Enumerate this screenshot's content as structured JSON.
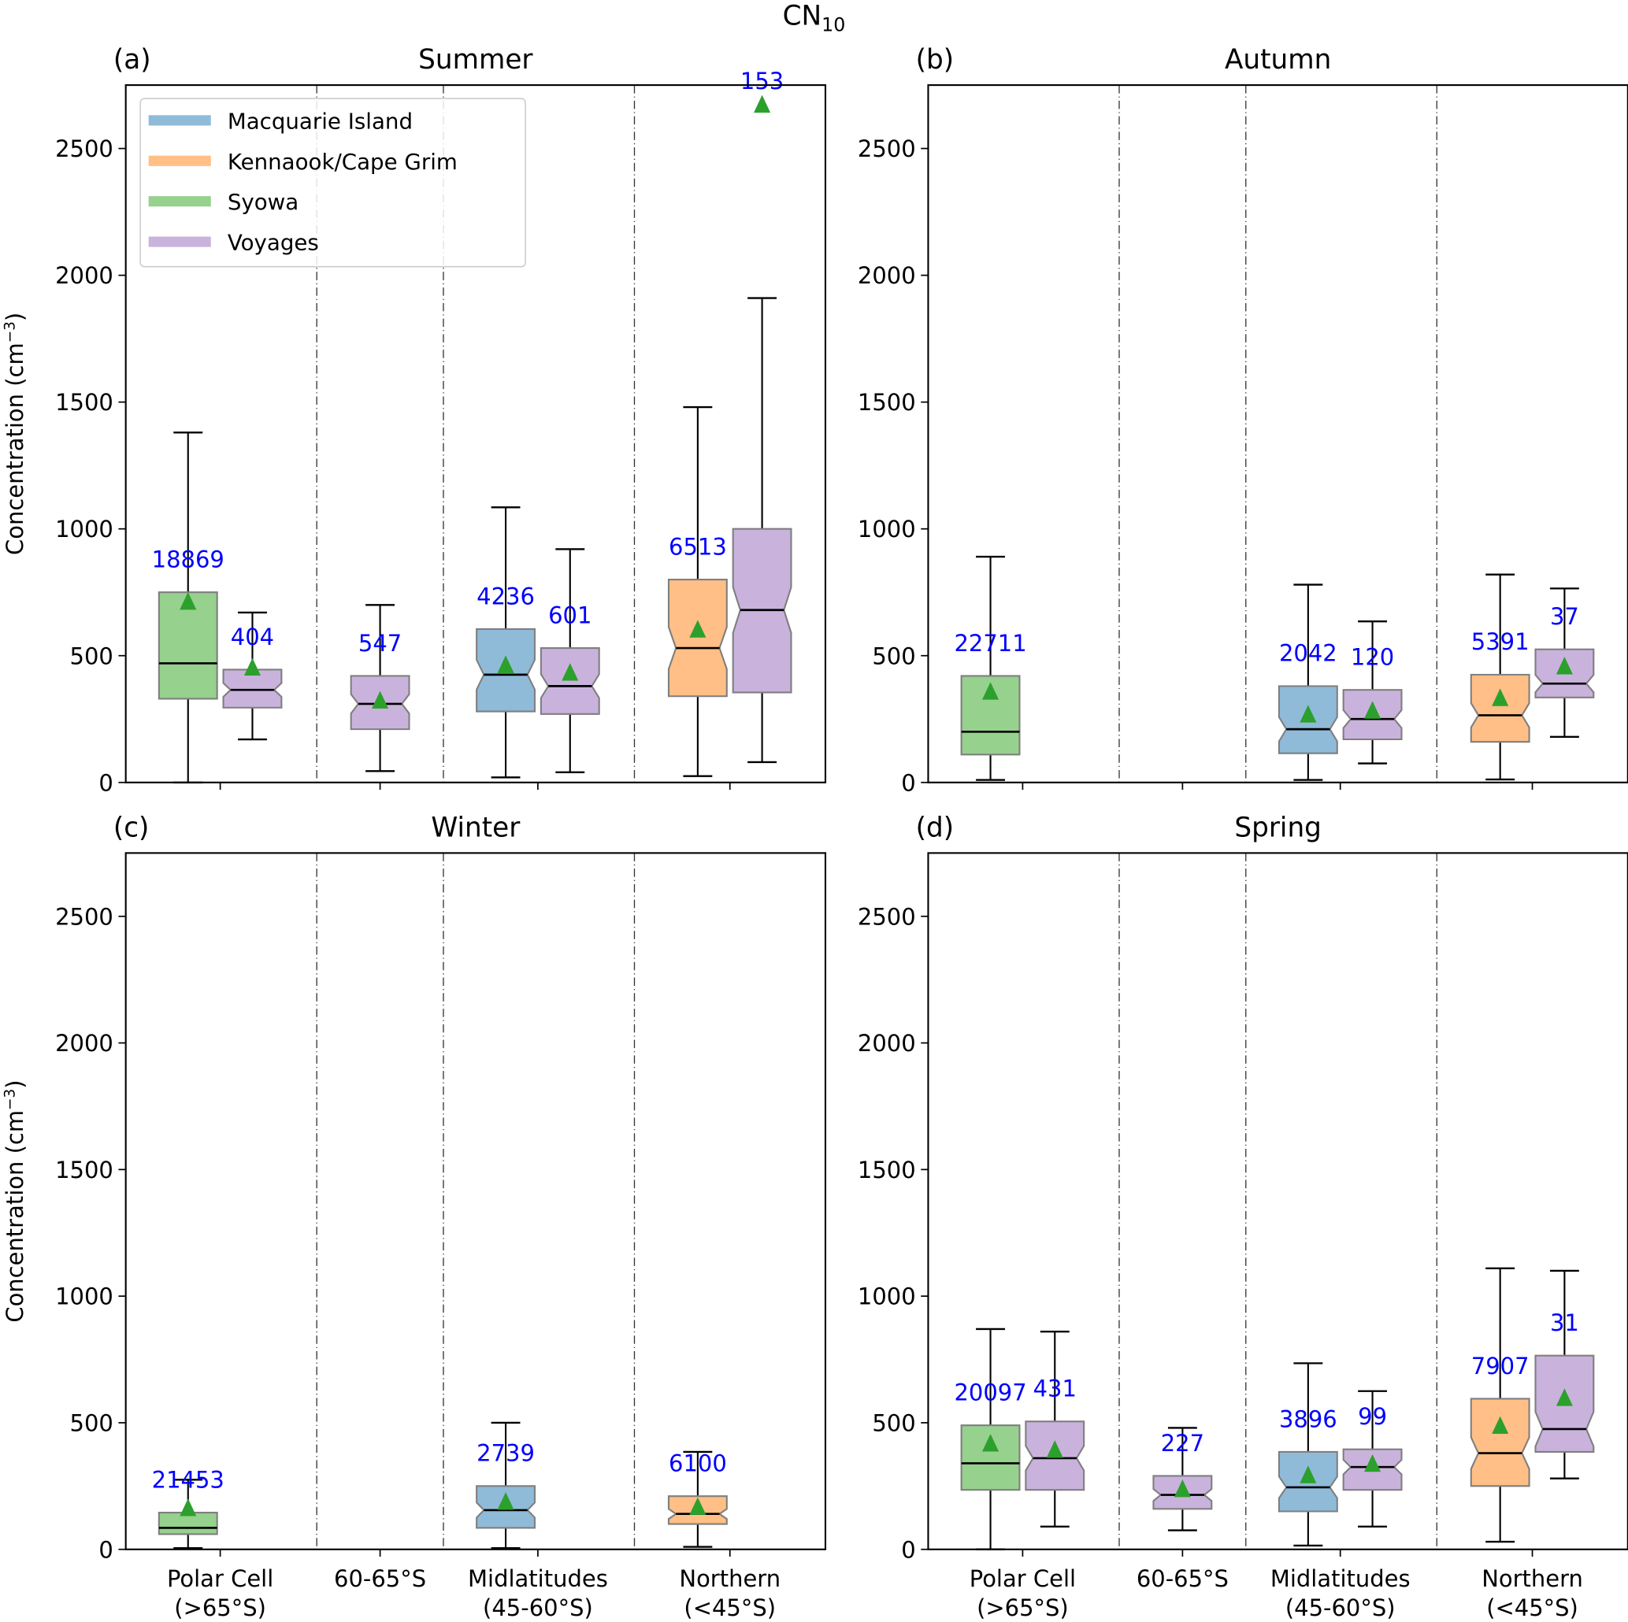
{
  "chart_data": {
    "type": "boxplot",
    "title": "CN10",
    "title_main": "CN",
    "title_sub": "10",
    "ylabel": "Concentration (cm",
    "ylabel_sup": "−3",
    "ylabel_close": ")",
    "ylim": [
      0,
      2750
    ],
    "yticks": [
      0,
      500,
      1000,
      1500,
      2000,
      2500
    ],
    "categories": [
      {
        "line1": "Polar Cell",
        "line2": "(>65°S)"
      },
      {
        "line1": "60-65°S",
        "line2": ""
      },
      {
        "line1": "Midlatitudes",
        "line2": "(45-60°S)"
      },
      {
        "line1": "Northern",
        "line2": "(<45°S)"
      }
    ],
    "legend": {
      "placement": "upper-left of panel (a)",
      "entries": [
        {
          "label": "Macquarie Island",
          "color": "#8fbbd9"
        },
        {
          "label": "Kennaook/Cape Grim",
          "color": "#ffbf86"
        },
        {
          "label": "Syowa",
          "color": "#96d18d"
        },
        {
          "label": "Voyages",
          "color": "#c9b3dd"
        }
      ]
    },
    "colors": {
      "Macquarie Island": "#8fbbd9",
      "Kennaook/Cape Grim": "#ffbf86",
      "Syowa": "#96d18d",
      "Voyages": "#c9b3dd",
      "mean_marker": "#2ca02c",
      "count_text": "#0000ff"
    },
    "panels": [
      {
        "label": "(a)",
        "season": "Summer",
        "boxes": [
          {
            "category": 0,
            "slot": "left",
            "station": "Syowa",
            "whislo": 0,
            "q1": 330,
            "median": 470,
            "q3": 750,
            "whishi": 1380,
            "mean": 710,
            "n": "18869",
            "notch": false
          },
          {
            "category": 0,
            "slot": "right",
            "station": "Voyages",
            "whislo": 170,
            "q1": 295,
            "median": 365,
            "q3": 445,
            "whishi": 670,
            "mean": 450,
            "n": "404",
            "notch": true
          },
          {
            "category": 1,
            "slot": "center",
            "station": "Voyages",
            "whislo": 45,
            "q1": 210,
            "median": 310,
            "q3": 420,
            "whishi": 700,
            "mean": 320,
            "n": "547",
            "notch": true
          },
          {
            "category": 2,
            "slot": "left",
            "station": "Macquarie Island",
            "whislo": 20,
            "q1": 280,
            "median": 425,
            "q3": 605,
            "whishi": 1085,
            "mean": 460,
            "n": "4236",
            "notch": true
          },
          {
            "category": 2,
            "slot": "right",
            "station": "Voyages",
            "whislo": 40,
            "q1": 270,
            "median": 380,
            "q3": 530,
            "whishi": 920,
            "mean": 430,
            "n": "601",
            "notch": true
          },
          {
            "category": 3,
            "slot": "left",
            "station": "Kennaook/Cape Grim",
            "whislo": 25,
            "q1": 340,
            "median": 530,
            "q3": 800,
            "whishi": 1480,
            "mean": 600,
            "n": "6513",
            "notch": true
          },
          {
            "category": 3,
            "slot": "right",
            "station": "Voyages",
            "whislo": 80,
            "q1": 355,
            "median": 680,
            "q3": 1000,
            "whishi": 1910,
            "mean": 2670,
            "n": "153",
            "notch": true
          }
        ]
      },
      {
        "label": "(b)",
        "season": "Autumn",
        "boxes": [
          {
            "category": 0,
            "slot": "left",
            "station": "Syowa",
            "whislo": 10,
            "q1": 110,
            "median": 200,
            "q3": 420,
            "whishi": 890,
            "mean": 355,
            "n": "22711",
            "notch": false
          },
          {
            "category": 2,
            "slot": "left",
            "station": "Macquarie Island",
            "whislo": 10,
            "q1": 115,
            "median": 210,
            "q3": 380,
            "whishi": 780,
            "mean": 265,
            "n": "2042",
            "notch": true
          },
          {
            "category": 2,
            "slot": "right",
            "station": "Voyages",
            "whislo": 75,
            "q1": 170,
            "median": 250,
            "q3": 365,
            "whishi": 635,
            "mean": 280,
            "n": "120",
            "notch": true
          },
          {
            "category": 3,
            "slot": "left",
            "station": "Kennaook/Cape Grim",
            "whislo": 12,
            "q1": 160,
            "median": 265,
            "q3": 425,
            "whishi": 820,
            "mean": 330,
            "n": "5391",
            "notch": true
          },
          {
            "category": 3,
            "slot": "right",
            "station": "Voyages",
            "whislo": 180,
            "q1": 335,
            "median": 390,
            "q3": 525,
            "whishi": 765,
            "mean": 455,
            "n": "37",
            "notch": true
          }
        ]
      },
      {
        "label": "(c)",
        "season": "Winter",
        "boxes": [
          {
            "category": 0,
            "slot": "left",
            "station": "Syowa",
            "whislo": 5,
            "q1": 60,
            "median": 85,
            "q3": 145,
            "whishi": 275,
            "mean": 160,
            "n": "21453",
            "notch": false
          },
          {
            "category": 2,
            "slot": "left",
            "station": "Macquarie Island",
            "whislo": 5,
            "q1": 85,
            "median": 155,
            "q3": 250,
            "whishi": 500,
            "mean": 185,
            "n": "2739",
            "notch": true
          },
          {
            "category": 3,
            "slot": "left",
            "station": "Kennaook/Cape Grim",
            "whislo": 10,
            "q1": 100,
            "median": 140,
            "q3": 210,
            "whishi": 385,
            "mean": 165,
            "n": "6100",
            "notch": true
          }
        ]
      },
      {
        "label": "(d)",
        "season": "Spring",
        "boxes": [
          {
            "category": 0,
            "slot": "left",
            "station": "Syowa",
            "whislo": 0,
            "q1": 235,
            "median": 340,
            "q3": 490,
            "whishi": 870,
            "mean": 415,
            "n": "20097",
            "notch": false
          },
          {
            "category": 0,
            "slot": "right",
            "station": "Voyages",
            "whislo": 90,
            "q1": 235,
            "median": 360,
            "q3": 505,
            "whishi": 860,
            "mean": 390,
            "n": "431",
            "notch": true
          },
          {
            "category": 1,
            "slot": "center",
            "station": "Voyages",
            "whislo": 75,
            "q1": 160,
            "median": 215,
            "q3": 290,
            "whishi": 480,
            "mean": 235,
            "n": "227",
            "notch": true
          },
          {
            "category": 2,
            "slot": "left",
            "station": "Macquarie Island",
            "whislo": 15,
            "q1": 150,
            "median": 245,
            "q3": 385,
            "whishi": 735,
            "mean": 290,
            "n": "3896",
            "notch": true
          },
          {
            "category": 2,
            "slot": "right",
            "station": "Voyages",
            "whislo": 90,
            "q1": 235,
            "median": 325,
            "q3": 395,
            "whishi": 625,
            "mean": 335,
            "n": "99",
            "notch": true
          },
          {
            "category": 3,
            "slot": "left",
            "station": "Kennaook/Cape Grim",
            "whislo": 30,
            "q1": 250,
            "median": 380,
            "q3": 595,
            "whishi": 1110,
            "mean": 485,
            "n": "7907",
            "notch": true
          },
          {
            "category": 3,
            "slot": "right",
            "station": "Voyages",
            "whislo": 280,
            "q1": 385,
            "median": 475,
            "q3": 765,
            "whishi": 1100,
            "mean": 595,
            "n": "31",
            "notch": true
          }
        ]
      }
    ]
  }
}
